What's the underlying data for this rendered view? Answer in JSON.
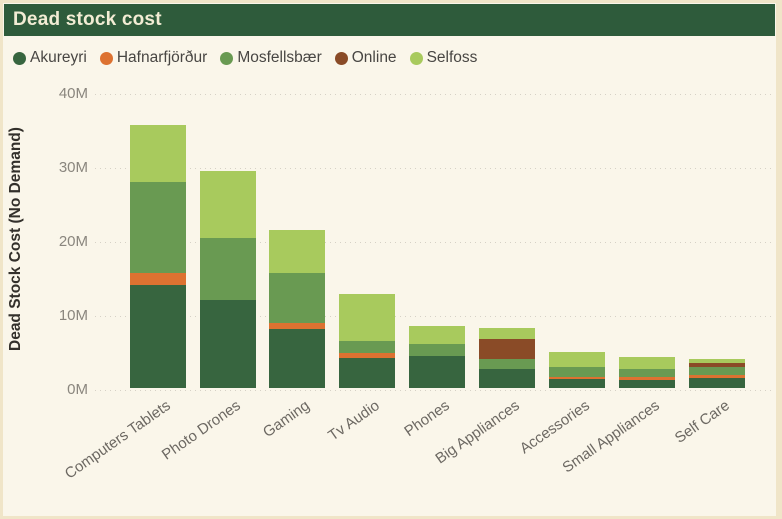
{
  "header": {
    "title": "Dead stock cost"
  },
  "legend": {
    "items": [
      {
        "label": "Akureyri",
        "color": "#37653f"
      },
      {
        "label": "Hafnarfjörður",
        "color": "#dd7231"
      },
      {
        "label": "Mosfellsbær",
        "color": "#699a52"
      },
      {
        "label": "Online",
        "color": "#8a4b27"
      },
      {
        "label": "Selfoss",
        "color": "#a8ca5d"
      }
    ]
  },
  "chart_data": {
    "type": "bar",
    "stacked": true,
    "title": "Dead stock cost",
    "xlabel": "",
    "ylabel": "Dead Stock Cost (No Demand)",
    "values_unit": "millions",
    "ylim": [
      0,
      40000000
    ],
    "ytick_values": [
      0,
      10,
      20,
      30,
      40
    ],
    "ytick_labels": [
      "0M",
      "10M",
      "20M",
      "30M",
      "40M"
    ],
    "grid": "dotted-horizontal",
    "legend_position": "top",
    "categories": [
      "Computers Tablets",
      "Photo Drones",
      "Gaming",
      "Tv Audio",
      "Phones",
      "Big Appliances",
      "Accessories",
      "Small Appliances",
      "Self Care"
    ],
    "series": [
      {
        "name": "Akureyri",
        "color": "#37653f",
        "values": [
          13.9,
          11.9,
          7.9,
          4.0,
          4.3,
          2.5,
          1.2,
          1.1,
          1.4
        ]
      },
      {
        "name": "Hafnarfjörður",
        "color": "#dd7231",
        "values": [
          1.6,
          0,
          0.9,
          0.7,
          0,
          0,
          0.35,
          0.35,
          0.35
        ]
      },
      {
        "name": "Mosfellsbær",
        "color": "#699a52",
        "values": [
          12.3,
          8.4,
          6.7,
          1.6,
          1.6,
          1.35,
          1.35,
          1.1,
          1.05
        ]
      },
      {
        "name": "Online",
        "color": "#8a4b27",
        "values": [
          0,
          0,
          0,
          0,
          0,
          2.7,
          0,
          0,
          0.6
        ]
      },
      {
        "name": "Selfoss",
        "color": "#a8ca5d",
        "values": [
          7.7,
          9.0,
          5.8,
          6.4,
          2.5,
          1.6,
          2.0,
          1.7,
          0.55
        ]
      }
    ],
    "totals": [
      35.5,
      29.3,
      21.3,
      12.7,
      8.4,
      8.15,
      4.9,
      4.25,
      3.95
    ]
  }
}
